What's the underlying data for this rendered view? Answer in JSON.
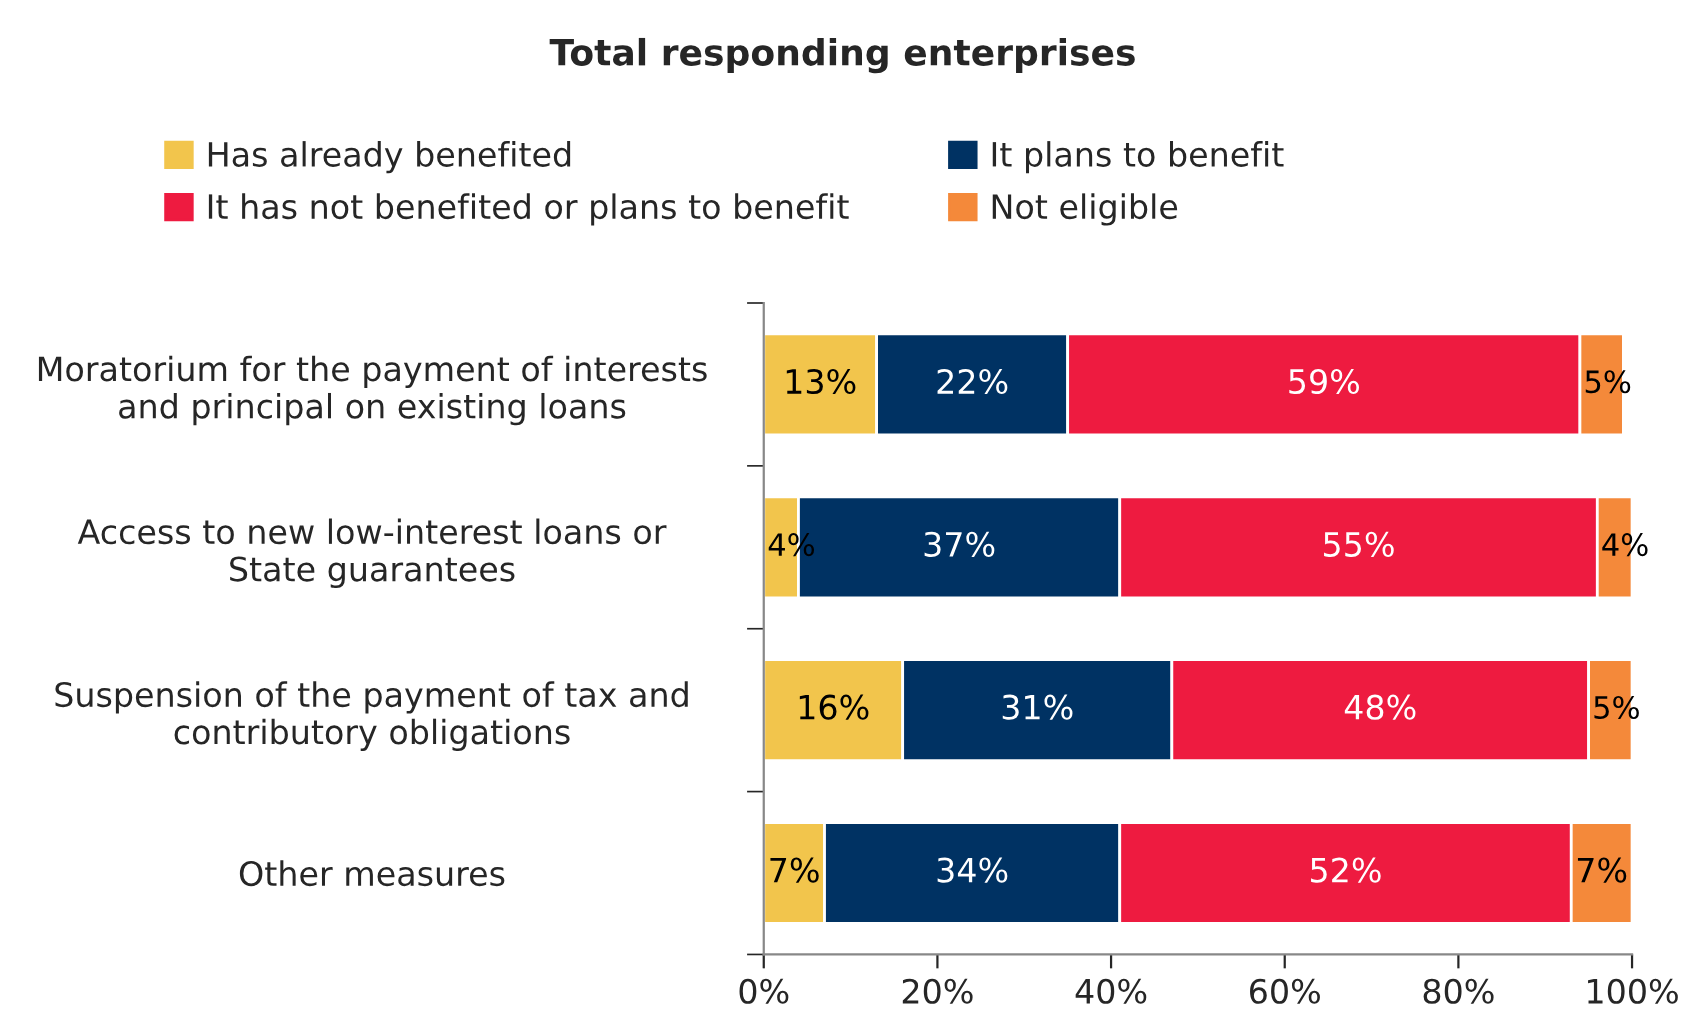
{
  "chart_data": {
    "type": "bar",
    "orientation": "horizontal",
    "stacked": true,
    "title": "Total responding enterprises",
    "categories": [
      "Moratorium for the payment of interests\nand principal on existing loans",
      "Access to new low-interest loans or\nState guarantees",
      "Suspension of the payment of tax and\ncontributory obligations",
      "Other measures"
    ],
    "series": [
      {
        "name": "Has already benefited",
        "color": "#f2c54c",
        "values": [
          13,
          4,
          16,
          7
        ],
        "value_labels": [
          "13%",
          "4%",
          "16%",
          "7%"
        ]
      },
      {
        "name": "It plans to benefit",
        "color": "#003263",
        "values": [
          22,
          37,
          31,
          34
        ],
        "value_labels": [
          "22%",
          "37%",
          "31%",
          "34%"
        ]
      },
      {
        "name": "It has not benefited or plans to benefit",
        "color": "#ee1b40",
        "values": [
          59,
          55,
          48,
          52
        ],
        "value_labels": [
          "59%",
          "55%",
          "48%",
          "52%"
        ]
      },
      {
        "name": "Not eligible",
        "color": "#f4893a",
        "values": [
          5,
          4,
          5,
          7
        ],
        "value_labels": [
          "5%",
          "4%",
          "5%",
          "7%"
        ]
      }
    ],
    "xlim": [
      0,
      100
    ],
    "xticks": [
      {
        "value": 0,
        "label": "0%"
      },
      {
        "value": 20,
        "label": "20%"
      },
      {
        "value": 40,
        "label": "40%"
      },
      {
        "value": 60,
        "label": "60%"
      },
      {
        "value": 80,
        "label": "80%"
      },
      {
        "value": 100,
        "label": "100%"
      }
    ],
    "grid": false,
    "legend": "top"
  }
}
